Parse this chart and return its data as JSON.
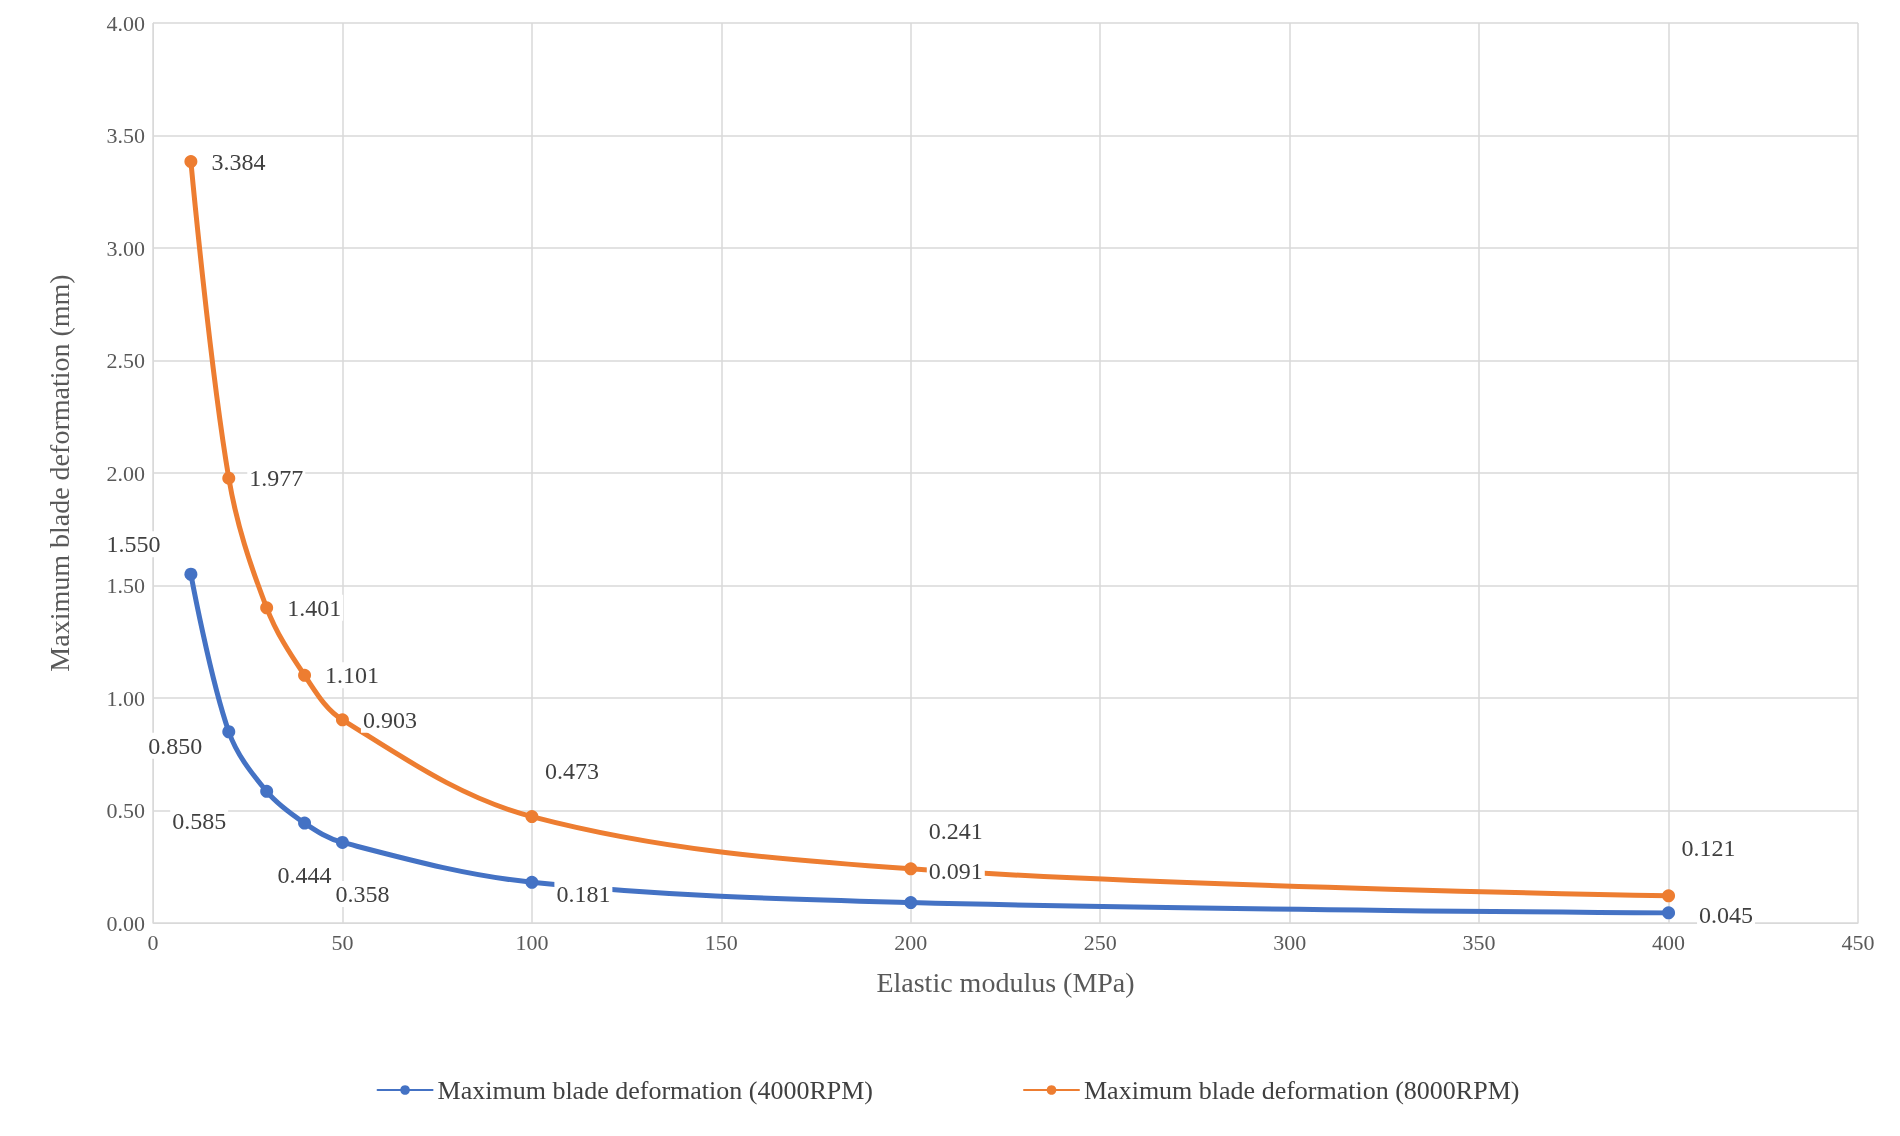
{
  "chart_data": {
    "type": "line",
    "xlabel": "Elastic modulus (MPa)",
    "ylabel": "Maximum blade deformation (mm)",
    "x": [
      10,
      20,
      30,
      40,
      50,
      100,
      200,
      400
    ],
    "series": [
      {
        "name": "Maximum blade deformation (4000RPM)",
        "color": "#4472c4",
        "values": [
          1.55,
          0.85,
          0.585,
          0.444,
          0.358,
          0.181,
          0.091,
          0.045
        ],
        "value_labels": [
          "1.550",
          "0.850",
          "0.585",
          "0.444",
          "0.358",
          "0.181",
          "0.091",
          "0.045"
        ]
      },
      {
        "name": "Maximum blade deformation (8000RPM)",
        "color": "#ed7d31",
        "values": [
          3.384,
          1.977,
          1.401,
          1.101,
          0.903,
          0.473,
          0.241,
          0.121
        ],
        "value_labels": [
          "3.384",
          "1.977",
          "1.401",
          "1.101",
          "0.903",
          "0.473",
          "0.241",
          "0.121"
        ]
      }
    ],
    "xlim": [
      0,
      450
    ],
    "xticks": [
      0,
      50,
      100,
      150,
      200,
      250,
      300,
      350,
      400,
      450
    ],
    "ylim": [
      0,
      4
    ],
    "yticks": [
      {
        "value": 0,
        "label": "0.00"
      },
      {
        "value": 0.5,
        "label": "0.50"
      },
      {
        "value": 1,
        "label": "1.00"
      },
      {
        "value": 1.5,
        "label": "1.50"
      },
      {
        "value": 2,
        "label": "2.00"
      },
      {
        "value": 2.5,
        "label": "2.50"
      },
      {
        "value": 3,
        "label": "3.00"
      },
      {
        "value": 3.5,
        "label": "3.50"
      },
      {
        "value": 4,
        "label": "4.00"
      }
    ],
    "grid": true,
    "legend": "bottom",
    "marker": "circle",
    "line_style": "solid"
  }
}
